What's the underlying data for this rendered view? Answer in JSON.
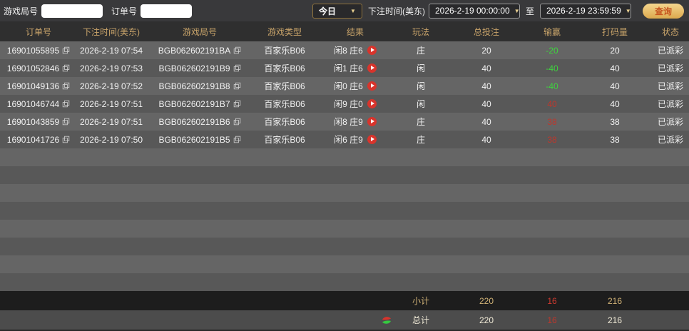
{
  "topbar": {
    "game_round_label": "游戏局号",
    "game_round_input_value": "",
    "order_no_label": "订单号",
    "order_no_input_value": "",
    "period_selected": "今日",
    "bet_time_label": "下注时间(美东)",
    "date_from": "2026-2-19 00:00:00",
    "to_label": "至",
    "date_to": "2026-2-19 23:59:59",
    "query_button_label": "查询"
  },
  "icons": {
    "caret_down": "▼"
  },
  "table": {
    "headers": [
      "订单号",
      "下注时间(美东)",
      "游戏局号",
      "游戏类型",
      "结果",
      "玩法",
      "总投注",
      "输赢",
      "打码量",
      "状态"
    ],
    "rows": [
      {
        "order_no": "16901055895",
        "bet_time": "2026-2-19 07:54",
        "round_no": "BGB062602191BA",
        "game_type": "百家乐B06",
        "result": "闲8 庄6",
        "play": "庄",
        "total_bet": "20",
        "win_loss": "-20",
        "win_loss_color": "green",
        "turnover": "20",
        "status": "已派彩"
      },
      {
        "order_no": "16901052846",
        "bet_time": "2026-2-19 07:53",
        "round_no": "BGB062602191B9",
        "game_type": "百家乐B06",
        "result": "闲1 庄6",
        "play": "闲",
        "total_bet": "40",
        "win_loss": "-40",
        "win_loss_color": "green",
        "turnover": "40",
        "status": "已派彩"
      },
      {
        "order_no": "16901049136",
        "bet_time": "2026-2-19 07:52",
        "round_no": "BGB062602191B8",
        "game_type": "百家乐B06",
        "result": "闲0 庄6",
        "play": "闲",
        "total_bet": "40",
        "win_loss": "-40",
        "win_loss_color": "green",
        "turnover": "40",
        "status": "已派彩"
      },
      {
        "order_no": "16901046744",
        "bet_time": "2026-2-19 07:51",
        "round_no": "BGB062602191B7",
        "game_type": "百家乐B06",
        "result": "闲9 庄0",
        "play": "闲",
        "total_bet": "40",
        "win_loss": "40",
        "win_loss_color": "red",
        "turnover": "40",
        "status": "已派彩"
      },
      {
        "order_no": "16901043859",
        "bet_time": "2026-2-19 07:51",
        "round_no": "BGB062602191B6",
        "game_type": "百家乐B06",
        "result": "闲8 庄9",
        "play": "庄",
        "total_bet": "40",
        "win_loss": "38",
        "win_loss_color": "red",
        "turnover": "38",
        "status": "已派彩"
      },
      {
        "order_no": "16901041726",
        "bet_time": "2026-2-19 07:50",
        "round_no": "BGB062602191B5",
        "game_type": "百家乐B06",
        "result": "闲6 庄9",
        "play": "庄",
        "total_bet": "40",
        "win_loss": "38",
        "win_loss_color": "red",
        "turnover": "38",
        "status": "已派彩"
      }
    ],
    "subtotal": {
      "label": "小计",
      "total_bet": "220",
      "win_loss": "16",
      "turnover": "216"
    },
    "total": {
      "label": "总计",
      "total_bet": "220",
      "win_loss": "16",
      "turnover": "216"
    }
  },
  "colors": {
    "win_green": "#3ed33e",
    "win_red": "#c0362b",
    "header_gold": "#c9a46a",
    "subtotal_gold": "#d2b377",
    "query_button_gold": "#e8bf6e",
    "query_text_orange": "#c6551f",
    "play_button_red": "#d8342c"
  }
}
